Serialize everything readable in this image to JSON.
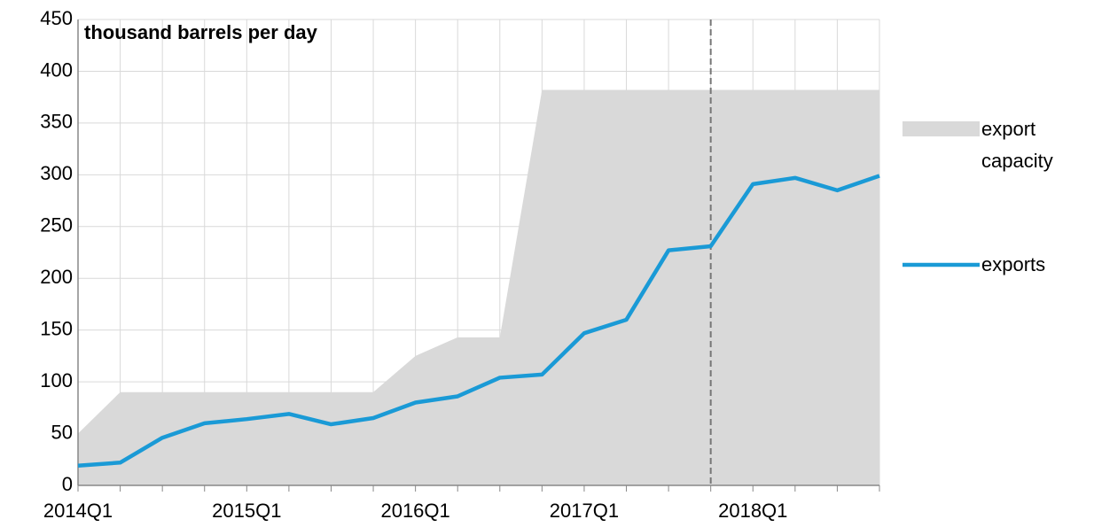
{
  "chart_data": {
    "type": "line",
    "title": "thousand barrels per day",
    "categories": [
      "2014Q1",
      null,
      null,
      null,
      "2015Q1",
      null,
      null,
      null,
      "2016Q1",
      null,
      null,
      null,
      "2017Q1",
      null,
      null,
      null,
      "2018Q1",
      null,
      null,
      null
    ],
    "series": [
      {
        "name": "export capacity",
        "kind": "area",
        "color": "#d9d9d9",
        "values": [
          50,
          90,
          90,
          90,
          90,
          90,
          90,
          90,
          125,
          143,
          143,
          382,
          382,
          382,
          382,
          382,
          382,
          382,
          382,
          382
        ]
      },
      {
        "name": "exports",
        "kind": "line",
        "color": "#1a9ad6",
        "values": [
          19,
          22,
          46,
          60,
          64,
          69,
          59,
          65,
          80,
          86,
          104,
          107,
          147,
          160,
          227,
          231,
          291,
          297,
          285,
          299
        ]
      }
    ],
    "ylim": [
      0,
      450
    ],
    "yticks": [
      0,
      50,
      100,
      150,
      200,
      250,
      300,
      350,
      400,
      450
    ],
    "grid": true,
    "legend": "right",
    "vline_index": 15
  }
}
